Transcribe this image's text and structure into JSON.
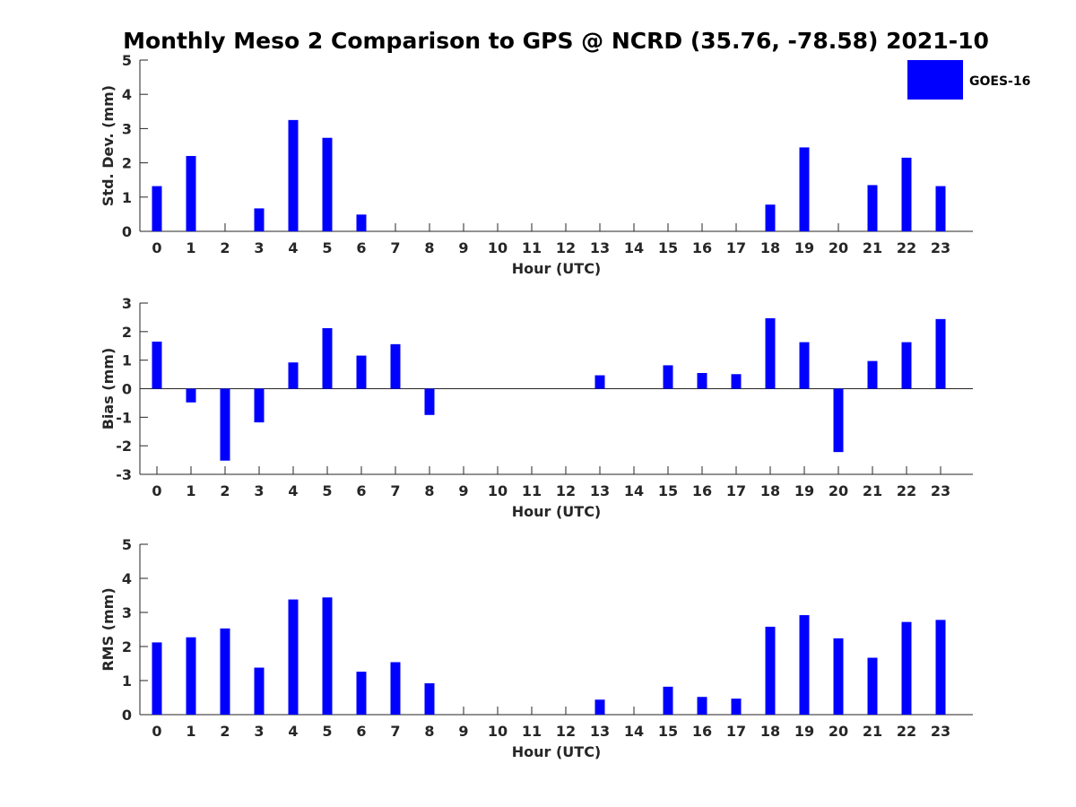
{
  "chart_data": [
    {
      "type": "bar",
      "title": "Monthly Meso 2 Comparison to GPS @ NCRD (35.76, -78.58) 2021-10",
      "ylabel": "Std. Dev. (mm)",
      "xlabel": "Hour (UTC)",
      "ylim": [
        0,
        5
      ],
      "yticks": [
        0,
        1,
        2,
        3,
        4,
        5
      ],
      "categories": [
        "0",
        "1",
        "2",
        "3",
        "4",
        "5",
        "6",
        "7",
        "8",
        "9",
        "10",
        "11",
        "12",
        "13",
        "14",
        "15",
        "16",
        "17",
        "18",
        "19",
        "20",
        "21",
        "22",
        "23"
      ],
      "series": [
        {
          "name": "GOES-16",
          "color": "#0000ff",
          "values": [
            1.32,
            2.2,
            null,
            0.67,
            3.25,
            2.73,
            0.49,
            null,
            null,
            null,
            null,
            null,
            null,
            null,
            null,
            null,
            null,
            null,
            0.78,
            2.45,
            null,
            1.35,
            2.15,
            1.32
          ]
        }
      ],
      "legend": {
        "label": "GOES-16",
        "position": "top-right"
      }
    },
    {
      "type": "bar",
      "ylabel": "Bias (mm)",
      "xlabel": "Hour (UTC)",
      "ylim": [
        -3,
        3
      ],
      "yticks": [
        -3,
        -2,
        -1,
        0,
        1,
        2,
        3
      ],
      "categories": [
        "0",
        "1",
        "2",
        "3",
        "4",
        "5",
        "6",
        "7",
        "8",
        "9",
        "10",
        "11",
        "12",
        "13",
        "14",
        "15",
        "16",
        "17",
        "18",
        "19",
        "20",
        "21",
        "22",
        "23"
      ],
      "series": [
        {
          "name": "GOES-16",
          "color": "#0000ff",
          "values": [
            1.65,
            -0.48,
            -2.52,
            -1.18,
            0.92,
            2.12,
            1.16,
            1.56,
            -0.92,
            null,
            null,
            null,
            null,
            0.47,
            null,
            0.82,
            0.55,
            0.51,
            2.47,
            1.63,
            -2.22,
            0.97,
            1.63,
            2.44
          ]
        }
      ]
    },
    {
      "type": "bar",
      "ylabel": "RMS (mm)",
      "xlabel": "Hour (UTC)",
      "ylim": [
        0,
        5
      ],
      "yticks": [
        0,
        1,
        2,
        3,
        4,
        5
      ],
      "categories": [
        "0",
        "1",
        "2",
        "3",
        "4",
        "5",
        "6",
        "7",
        "8",
        "9",
        "10",
        "11",
        "12",
        "13",
        "14",
        "15",
        "16",
        "17",
        "18",
        "19",
        "20",
        "21",
        "22",
        "23"
      ],
      "series": [
        {
          "name": "GOES-16",
          "color": "#0000ff",
          "values": [
            2.12,
            2.27,
            2.53,
            1.38,
            3.38,
            3.44,
            1.26,
            1.54,
            0.92,
            null,
            null,
            null,
            null,
            0.44,
            null,
            0.82,
            0.52,
            0.47,
            2.58,
            2.92,
            2.24,
            1.67,
            2.72,
            2.78
          ]
        }
      ]
    }
  ]
}
